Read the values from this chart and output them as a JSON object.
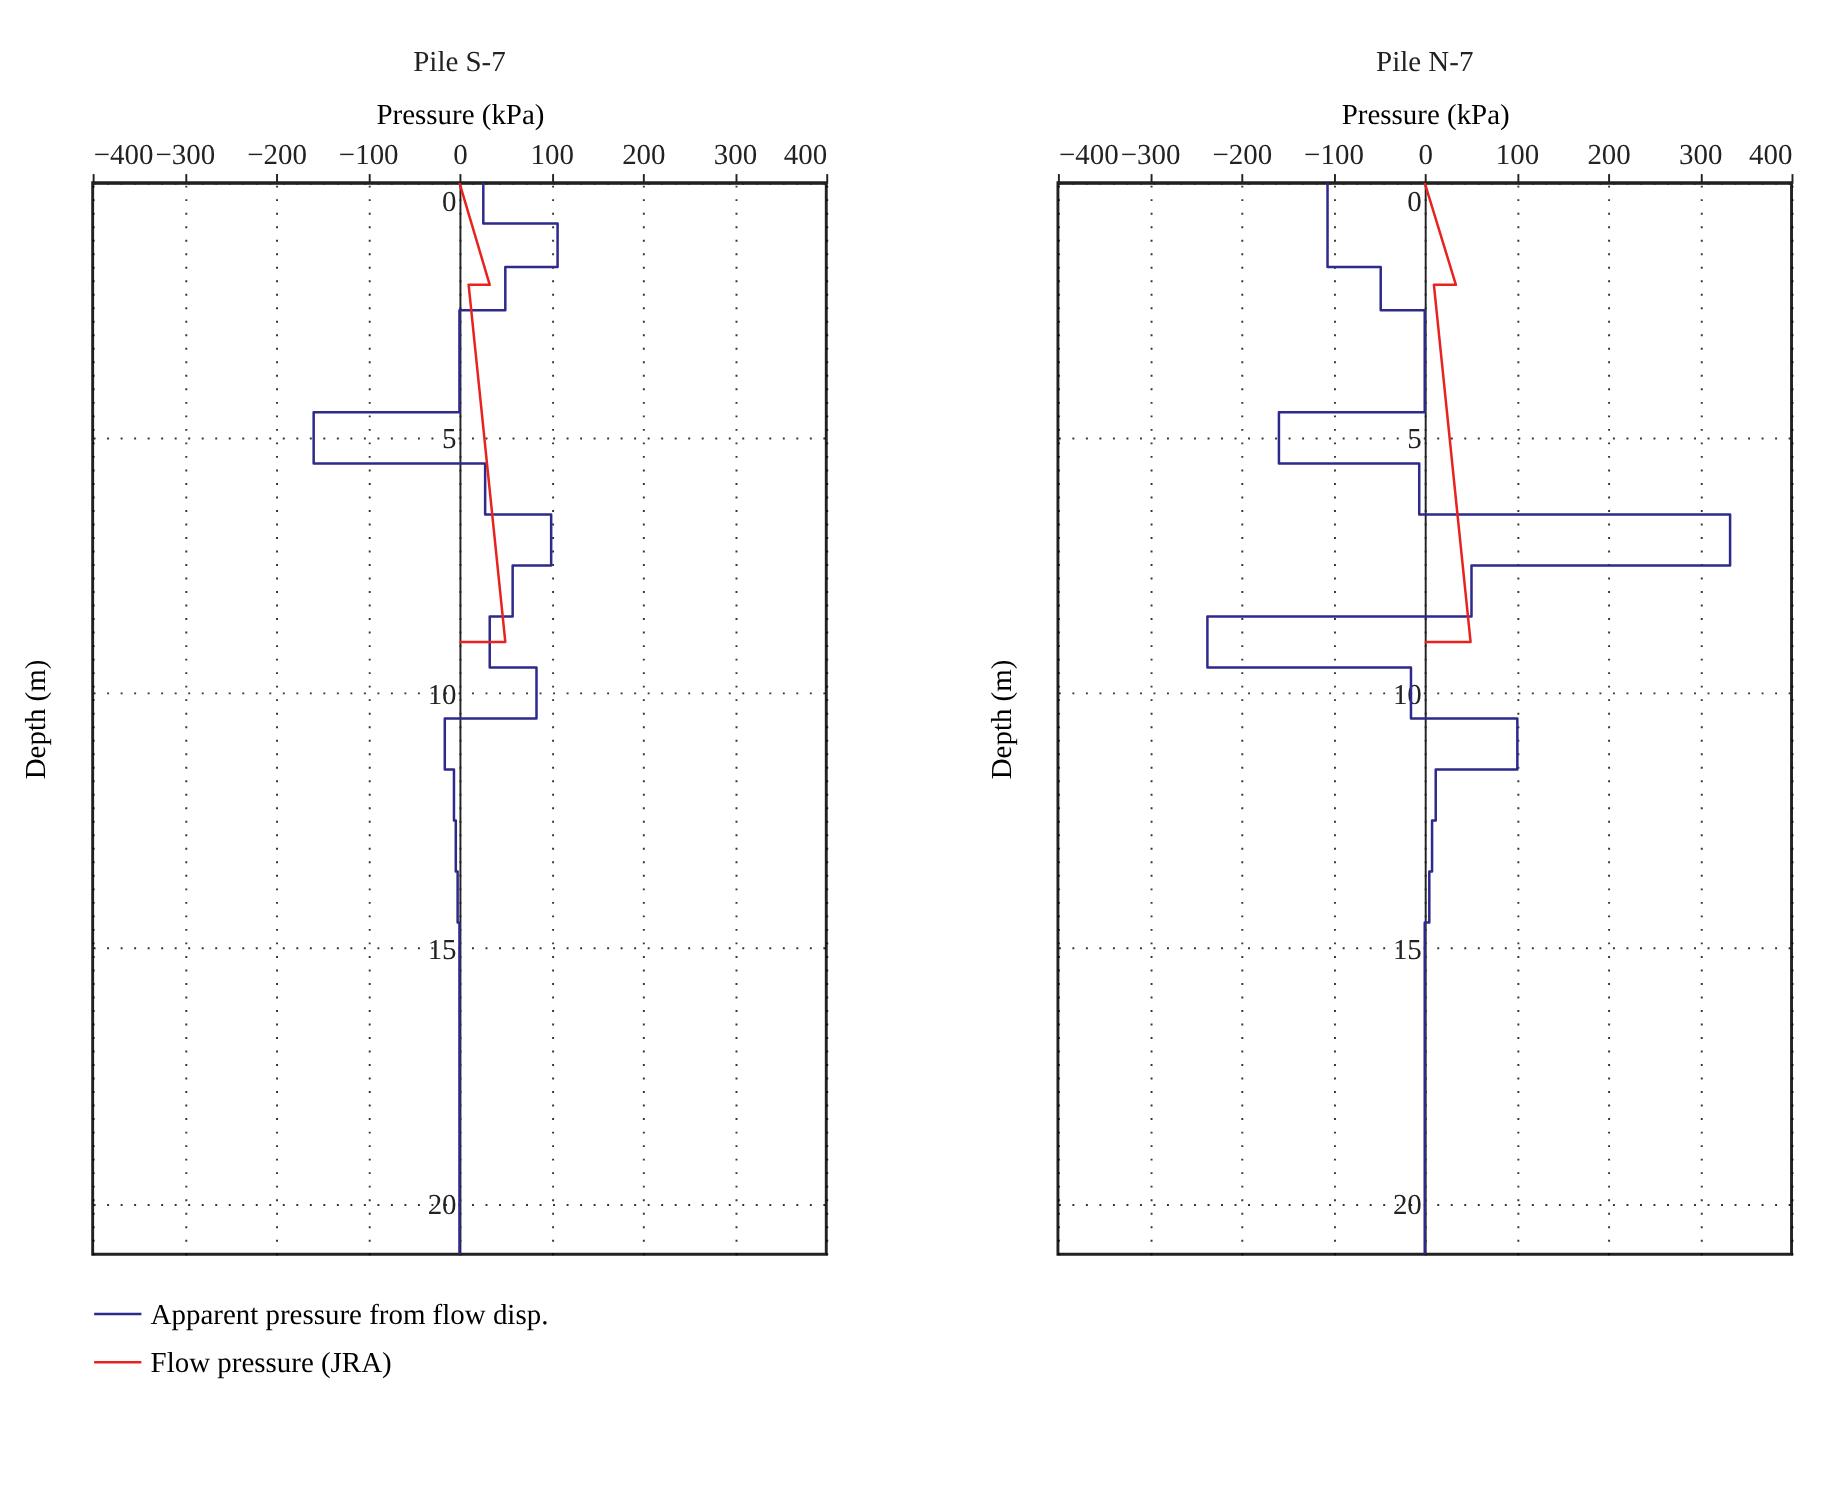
{
  "chart_data": [
    {
      "type": "line",
      "title": "Pile S-7",
      "xlabel": "Pressure (kPa)",
      "ylabel": "Depth (m)",
      "xlim": [
        -400,
        400
      ],
      "xticks": [
        -400,
        -300,
        -200,
        -100,
        0,
        100,
        200,
        300,
        400
      ],
      "ylim": [
        21,
        0
      ],
      "yticks": [
        0,
        5,
        10,
        15,
        20
      ],
      "grid": true,
      "legend": "bottom",
      "series": [
        {
          "name": "Apparent pressure from flow disp.",
          "color": "#2e2a8c",
          "x": [
            26,
            26,
            107,
            107,
            50,
            50,
            0,
            0,
            -159,
            -159,
            28,
            28,
            100,
            100,
            58,
            58,
            33,
            33,
            84,
            84,
            -16,
            -16,
            -6,
            -6,
            -4,
            -4,
            -2,
            -2,
            0,
            0
          ],
          "values": [
            0,
            0.8,
            0.8,
            1.65,
            1.65,
            2.5,
            2.5,
            4.5,
            4.5,
            5.5,
            5.5,
            6.5,
            6.5,
            7.5,
            7.5,
            8.5,
            8.5,
            9.5,
            9.5,
            10.5,
            10.5,
            11.5,
            11.5,
            12.5,
            12.5,
            13.5,
            13.5,
            14.5,
            14.5,
            21
          ]
        },
        {
          "name": "Flow pressure (JRA)",
          "color": "#e8231e",
          "x": [
            0,
            33,
            10,
            50,
            0
          ],
          "values": [
            0,
            2.0,
            2.0,
            9.0,
            9.0
          ]
        }
      ]
    },
    {
      "type": "line",
      "title": "Pile N-7",
      "xlabel": "Pressure (kPa)",
      "ylabel": "Depth (m)",
      "xlim": [
        -400,
        400
      ],
      "xticks": [
        -400,
        -300,
        -200,
        -100,
        0,
        100,
        200,
        300,
        400
      ],
      "ylim": [
        21,
        0
      ],
      "yticks": [
        0,
        5,
        10,
        15,
        20
      ],
      "grid": true,
      "series": [
        {
          "name": "Apparent pressure from flow disp.",
          "color": "#2e2a8c",
          "x": [
            -106,
            -106,
            -48,
            -48,
            0,
            0,
            -159,
            -159,
            -6,
            -6,
            333,
            333,
            51,
            51,
            -237,
            -237,
            -15,
            -15,
            101,
            101,
            12,
            12,
            8,
            8,
            5,
            5,
            0,
            0
          ],
          "values": [
            0,
            1.65,
            1.65,
            2.5,
            2.5,
            4.5,
            4.5,
            5.5,
            5.5,
            6.5,
            6.5,
            7.5,
            7.5,
            8.5,
            8.5,
            9.5,
            9.5,
            10.5,
            10.5,
            11.5,
            11.5,
            12.5,
            12.5,
            13.5,
            13.5,
            14.5,
            14.5,
            21
          ]
        },
        {
          "name": "Flow pressure (JRA)",
          "color": "#e8231e",
          "x": [
            0,
            34,
            10,
            50,
            0
          ],
          "values": [
            0,
            2.0,
            2.0,
            9.0,
            9.0
          ]
        }
      ]
    }
  ]
}
